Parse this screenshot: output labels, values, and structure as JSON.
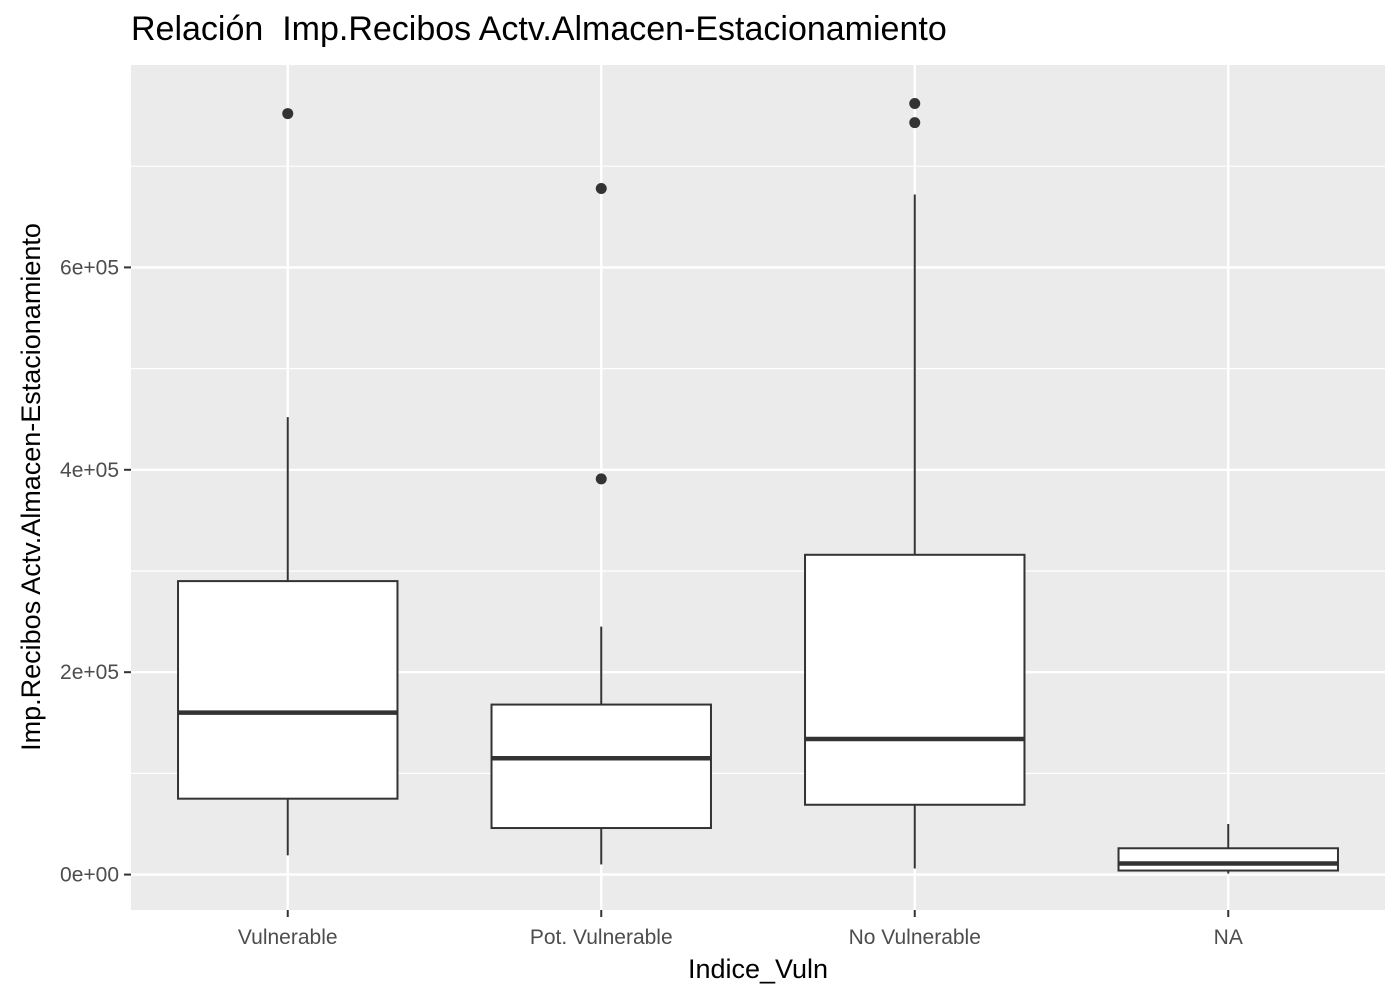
{
  "chart_data": {
    "type": "box",
    "title": "Relación  Imp.Recibos Actv.Almacen-Estacionamiento",
    "xlabel": "Indice_Vuln",
    "ylabel": "Imp.Recibos Actv.Almacen-Estacionamiento",
    "categories": [
      "Vulnerable",
      "Pot. Vulnerable",
      "No Vulnerable",
      "NA"
    ],
    "ylim": [
      -35000,
      800000
    ],
    "yticks": [
      0,
      200000,
      400000,
      600000
    ],
    "ytick_labels": [
      "0e+00",
      "2e+05",
      "4e+05",
      "6e+05"
    ],
    "grid": true,
    "boxes": [
      {
        "category": "Vulnerable",
        "whisker_low": 19000,
        "q1": 75000,
        "median": 160000,
        "q3": 290000,
        "whisker_high": 452000,
        "outliers": [
          752000
        ]
      },
      {
        "category": "Pot. Vulnerable",
        "whisker_low": 10000,
        "q1": 46000,
        "median": 115000,
        "q3": 168000,
        "whisker_high": 245000,
        "outliers": [
          391000,
          678000
        ]
      },
      {
        "category": "No Vulnerable",
        "whisker_low": 6000,
        "q1": 69000,
        "median": 134000,
        "q3": 316000,
        "whisker_high": 672000,
        "outliers": [
          743000,
          762000
        ]
      },
      {
        "category": "NA",
        "whisker_low": 1000,
        "q1": 4000,
        "median": 11000,
        "q3": 26000,
        "whisker_high": 50000,
        "outliers": []
      }
    ]
  }
}
